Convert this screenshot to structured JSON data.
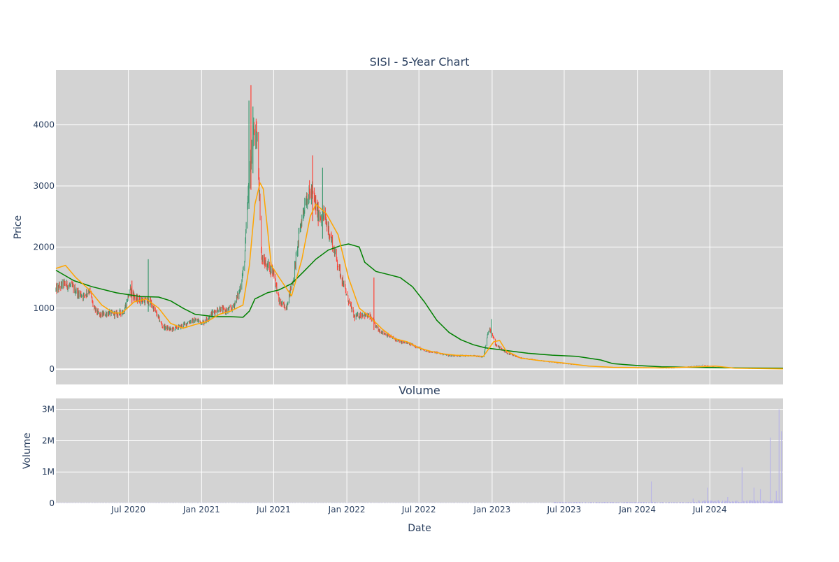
{
  "chart_data": {
    "type": "candlestick",
    "title": "SISI - 5-Year Chart",
    "colors": {
      "plot_bg": "#d3d3d3",
      "grid": "#ffffff",
      "increasing": "#3d9970",
      "decreasing": "#ff4136",
      "ma_short": "#ffa500",
      "ma_long": "#008000",
      "volume": "#b8b4e8",
      "text": "#2a3f5f"
    },
    "x_range": [
      "2020-01-01",
      "2025-01-01"
    ],
    "x_ticks": [
      {
        "date": "2020-07-01",
        "label": "Jul 2020"
      },
      {
        "date": "2021-01-01",
        "label": "Jan 2021"
      },
      {
        "date": "2021-07-01",
        "label": "Jul 2021"
      },
      {
        "date": "2022-01-01",
        "label": "Jan 2022"
      },
      {
        "date": "2022-07-01",
        "label": "Jul 2022"
      },
      {
        "date": "2023-01-01",
        "label": "Jan 2023"
      },
      {
        "date": "2023-07-01",
        "label": "Jul 2023"
      },
      {
        "date": "2024-01-01",
        "label": "Jan 2024"
      },
      {
        "date": "2024-07-01",
        "label": "Jul 2024"
      }
    ],
    "price_panel": {
      "ylabel": "Price",
      "ylim": [
        -250,
        4900
      ],
      "y_ticks": [
        0,
        1000,
        2000,
        3000,
        4000
      ],
      "y_tick_labels": [
        "0",
        "1000",
        "2000",
        "3000",
        "4000"
      ],
      "price_path": [
        [
          "2020-01-01",
          1300
        ],
        [
          "2020-01-20",
          1400
        ],
        [
          "2020-02-10",
          1350
        ],
        [
          "2020-02-25",
          1250
        ],
        [
          "2020-03-10",
          1200
        ],
        [
          "2020-03-25",
          1300
        ],
        [
          "2020-04-05",
          1000
        ],
        [
          "2020-04-20",
          880
        ],
        [
          "2020-05-10",
          920
        ],
        [
          "2020-06-01",
          900
        ],
        [
          "2020-06-20",
          950
        ],
        [
          "2020-07-05",
          1300
        ],
        [
          "2020-07-20",
          1150
        ],
        [
          "2020-08-10",
          1120
        ],
        [
          "2020-08-25",
          1100
        ],
        [
          "2020-09-10",
          900
        ],
        [
          "2020-09-25",
          700
        ],
        [
          "2020-10-15",
          650
        ],
        [
          "2020-11-10",
          700
        ],
        [
          "2020-12-01",
          780
        ],
        [
          "2020-12-20",
          800
        ],
        [
          "2021-01-05",
          760
        ],
        [
          "2021-01-25",
          900
        ],
        [
          "2021-02-15",
          1000
        ],
        [
          "2021-03-01",
          950
        ],
        [
          "2021-03-20",
          1000
        ],
        [
          "2021-04-05",
          1250
        ],
        [
          "2021-04-18",
          1700
        ],
        [
          "2021-05-01",
          3200
        ],
        [
          "2021-05-12",
          3900
        ],
        [
          "2021-05-22",
          3700
        ],
        [
          "2021-06-01",
          1800
        ],
        [
          "2021-06-15",
          1700
        ],
        [
          "2021-07-01",
          1600
        ],
        [
          "2021-07-15",
          1100
        ],
        [
          "2021-08-01",
          1000
        ],
        [
          "2021-08-20",
          1500
        ],
        [
          "2021-09-05",
          2300
        ],
        [
          "2021-09-20",
          2800
        ],
        [
          "2021-10-05",
          2900
        ],
        [
          "2021-10-20",
          2550
        ],
        [
          "2021-11-05",
          2500
        ],
        [
          "2021-11-20",
          2200
        ],
        [
          "2021-12-10",
          1700
        ],
        [
          "2022-01-01",
          1200
        ],
        [
          "2022-01-20",
          850
        ],
        [
          "2022-02-10",
          900
        ],
        [
          "2022-03-01",
          850
        ],
        [
          "2022-03-20",
          650
        ],
        [
          "2022-04-15",
          550
        ],
        [
          "2022-05-15",
          450
        ],
        [
          "2022-06-15",
          400
        ],
        [
          "2022-07-15",
          300
        ],
        [
          "2022-08-15",
          270
        ],
        [
          "2022-09-15",
          220
        ],
        [
          "2022-10-15",
          220
        ],
        [
          "2022-11-15",
          220
        ],
        [
          "2022-12-10",
          200
        ],
        [
          "2022-12-25",
          700
        ],
        [
          "2023-01-10",
          400
        ],
        [
          "2023-02-10",
          250
        ],
        [
          "2023-03-15",
          180
        ],
        [
          "2023-05-01",
          140
        ],
        [
          "2023-07-01",
          90
        ],
        [
          "2023-09-01",
          50
        ],
        [
          "2023-11-01",
          30
        ],
        [
          "2024-01-01",
          20
        ],
        [
          "2024-04-01",
          15
        ],
        [
          "2024-06-15",
          70
        ],
        [
          "2024-07-15",
          30
        ],
        [
          "2024-10-01",
          10
        ],
        [
          "2025-01-01",
          5
        ]
      ],
      "ma_short": [
        [
          "2020-01-01",
          1650
        ],
        [
          "2020-01-25",
          1700
        ],
        [
          "2020-02-20",
          1500
        ],
        [
          "2020-03-25",
          1300
        ],
        [
          "2020-04-25",
          1050
        ],
        [
          "2020-05-25",
          920
        ],
        [
          "2020-06-15",
          920
        ],
        [
          "2020-07-15",
          1100
        ],
        [
          "2020-08-15",
          1150
        ],
        [
          "2020-09-15",
          1000
        ],
        [
          "2020-10-15",
          750
        ],
        [
          "2020-11-15",
          670
        ],
        [
          "2020-12-15",
          730
        ],
        [
          "2021-01-15",
          780
        ],
        [
          "2021-02-15",
          900
        ],
        [
          "2021-03-15",
          950
        ],
        [
          "2021-04-15",
          1050
        ],
        [
          "2021-05-01",
          1700
        ],
        [
          "2021-05-15",
          2700
        ],
        [
          "2021-05-28",
          3050
        ],
        [
          "2021-06-05",
          2950
        ],
        [
          "2021-06-25",
          1700
        ],
        [
          "2021-07-15",
          1500
        ],
        [
          "2021-08-15",
          1200
        ],
        [
          "2021-09-10",
          1800
        ],
        [
          "2021-10-01",
          2500
        ],
        [
          "2021-10-15",
          2700
        ],
        [
          "2021-11-10",
          2550
        ],
        [
          "2021-12-10",
          2200
        ],
        [
          "2022-01-05",
          1500
        ],
        [
          "2022-02-01",
          1000
        ],
        [
          "2022-03-01",
          850
        ],
        [
          "2022-04-01",
          650
        ],
        [
          "2022-05-01",
          500
        ],
        [
          "2022-06-01",
          450
        ],
        [
          "2022-07-01",
          350
        ],
        [
          "2022-08-01",
          290
        ],
        [
          "2022-09-01",
          250
        ],
        [
          "2022-10-01",
          230
        ],
        [
          "2022-11-01",
          220
        ],
        [
          "2022-12-10",
          210
        ],
        [
          "2023-01-05",
          450
        ],
        [
          "2023-01-20",
          470
        ],
        [
          "2023-02-05",
          300
        ],
        [
          "2023-03-15",
          180
        ],
        [
          "2023-05-01",
          140
        ],
        [
          "2023-07-01",
          100
        ],
        [
          "2023-09-01",
          50
        ],
        [
          "2023-11-01",
          30
        ],
        [
          "2024-03-01",
          20
        ],
        [
          "2024-06-01",
          40
        ],
        [
          "2024-07-15",
          50
        ],
        [
          "2024-09-01",
          15
        ],
        [
          "2025-01-01",
          5
        ]
      ],
      "ma_long": [
        [
          "2020-01-01",
          1620
        ],
        [
          "2020-02-15",
          1450
        ],
        [
          "2020-04-01",
          1350
        ],
        [
          "2020-06-01",
          1250
        ],
        [
          "2020-08-01",
          1190
        ],
        [
          "2020-09-15",
          1180
        ],
        [
          "2020-10-15",
          1120
        ],
        [
          "2020-11-15",
          1000
        ],
        [
          "2020-12-15",
          900
        ],
        [
          "2021-02-01",
          860
        ],
        [
          "2021-03-15",
          860
        ],
        [
          "2021-04-15",
          850
        ],
        [
          "2021-05-01",
          950
        ],
        [
          "2021-05-15",
          1150
        ],
        [
          "2021-06-15",
          1250
        ],
        [
          "2021-07-15",
          1300
        ],
        [
          "2021-08-15",
          1400
        ],
        [
          "2021-09-15",
          1600
        ],
        [
          "2021-10-15",
          1800
        ],
        [
          "2021-11-15",
          1950
        ],
        [
          "2021-12-15",
          2020
        ],
        [
          "2022-01-05",
          2050
        ],
        [
          "2022-02-01",
          2000
        ],
        [
          "2022-02-15",
          1750
        ],
        [
          "2022-03-15",
          1600
        ],
        [
          "2022-04-15",
          1550
        ],
        [
          "2022-05-15",
          1500
        ],
        [
          "2022-06-15",
          1350
        ],
        [
          "2022-07-15",
          1100
        ],
        [
          "2022-08-15",
          800
        ],
        [
          "2022-09-15",
          600
        ],
        [
          "2022-10-15",
          480
        ],
        [
          "2022-11-15",
          400
        ],
        [
          "2022-12-15",
          350
        ],
        [
          "2023-02-01",
          310
        ],
        [
          "2023-04-01",
          260
        ],
        [
          "2023-06-01",
          230
        ],
        [
          "2023-08-01",
          210
        ],
        [
          "2023-10-01",
          150
        ],
        [
          "2023-11-01",
          90
        ],
        [
          "2024-01-01",
          60
        ],
        [
          "2024-03-01",
          40
        ],
        [
          "2024-06-01",
          30
        ],
        [
          "2024-09-01",
          20
        ],
        [
          "2025-01-01",
          15
        ]
      ],
      "spikes": [
        {
          "date": "2021-04-30",
          "value": 4400
        },
        {
          "date": "2021-05-05",
          "value": 4650
        },
        {
          "date": "2021-05-10",
          "value": 4300
        },
        {
          "date": "2021-10-07",
          "value": 3500
        },
        {
          "date": "2021-11-01",
          "value": 3300
        },
        {
          "date": "2020-07-10",
          "value": 1450
        },
        {
          "date": "2020-08-20",
          "value": 1800
        },
        {
          "date": "2022-03-10",
          "value": 1500
        },
        {
          "date": "2022-12-30",
          "value": 820
        }
      ]
    },
    "volume_panel": {
      "title": "Volume",
      "ylabel": "Volume",
      "xlabel": "Date",
      "ylim": [
        0,
        3350000
      ],
      "y_ticks": [
        0,
        1000000,
        2000000,
        3000000
      ],
      "y_tick_labels": [
        "0",
        "1M",
        "2M",
        "3M"
      ],
      "spikes": [
        {
          "date": "2024-02-05",
          "value": 700000
        },
        {
          "date": "2024-05-20",
          "value": 150000
        },
        {
          "date": "2024-06-25",
          "value": 500000
        },
        {
          "date": "2024-08-15",
          "value": 200000
        },
        {
          "date": "2024-09-20",
          "value": 1150000
        },
        {
          "date": "2024-10-20",
          "value": 500000
        },
        {
          "date": "2024-11-05",
          "value": 450000
        },
        {
          "date": "2024-11-30",
          "value": 2100000
        },
        {
          "date": "2024-12-15",
          "value": 400000
        },
        {
          "date": "2024-12-22",
          "value": 3000000
        },
        {
          "date": "2024-12-28",
          "value": 2300000
        }
      ]
    }
  }
}
